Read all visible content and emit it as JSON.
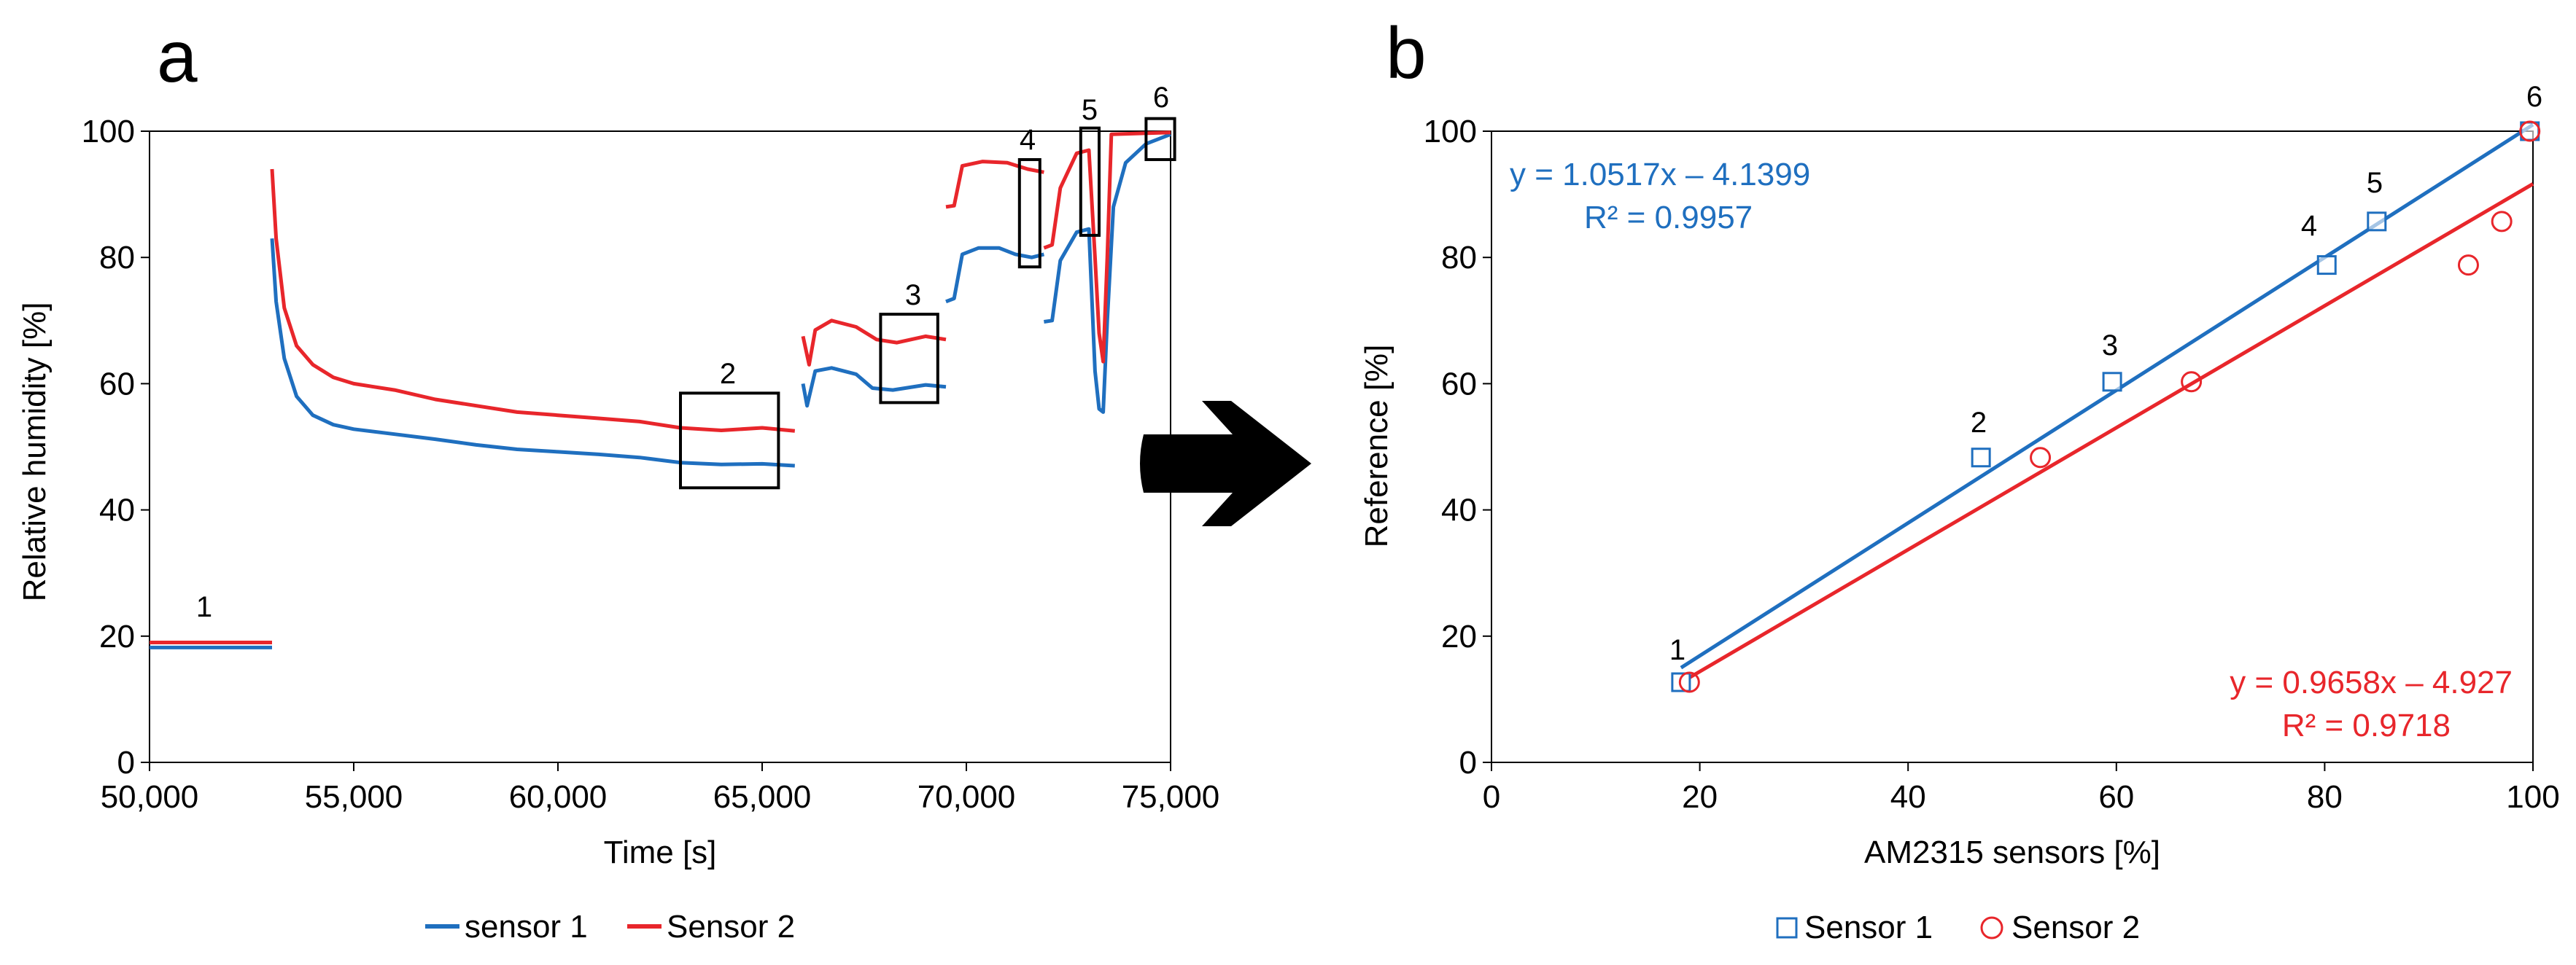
{
  "colors": {
    "series1": "#1f6fbf",
    "series2": "#e8262b",
    "axis": "#000000",
    "box": "#000000"
  },
  "panel_a": {
    "label": "a",
    "xlabel": "Time [s]",
    "ylabel": "Relative humidity [%]",
    "xlim": [
      50000,
      75000
    ],
    "ylim": [
      0,
      100
    ],
    "xticks": [
      "50,000",
      "55,000",
      "60,000",
      "65,000",
      "70,000",
      "75,000"
    ],
    "yticks": [
      "0",
      "20",
      "40",
      "60",
      "80",
      "100"
    ],
    "legend": [
      "sensor 1",
      "Sensor 2"
    ],
    "annotations": [
      "1",
      "2",
      "3",
      "4",
      "5",
      "6"
    ]
  },
  "panel_b": {
    "label": "b",
    "xlabel": "AM2315 sensors [%]",
    "ylabel": "Reference [%]",
    "xlim": [
      0,
      100
    ],
    "ylim": [
      0,
      100
    ],
    "xticks": [
      "0",
      "20",
      "40",
      "60",
      "80",
      "100"
    ],
    "yticks": [
      "0",
      "20",
      "40",
      "60",
      "80",
      "100"
    ],
    "legend": [
      "Sensor 1",
      "Sensor 2"
    ],
    "eq1": "y = 1.0517x – 4.1399",
    "r2_1": "R² = 0.9957",
    "eq2": "y = 0.9658x – 4.927",
    "r2_2": "R² = 0.9718",
    "point_labels": [
      "1",
      "2",
      "3",
      "4",
      "5",
      "6"
    ]
  },
  "chart_data": [
    {
      "type": "line",
      "title": "",
      "xlabel": "Time [s]",
      "ylabel": "Relative humidity [%]",
      "xlim": [
        50000,
        75000
      ],
      "ylim": [
        0,
        100
      ],
      "series": [
        {
          "name": "sensor 1",
          "segments": [
            [
              [
                50000,
                18.2
              ],
              [
                53000,
                18.2
              ]
            ],
            [
              [
                53000,
                83
              ],
              [
                53100,
                73
              ],
              [
                53300,
                64
              ],
              [
                53600,
                58
              ],
              [
                54000,
                55
              ],
              [
                54500,
                53.5
              ],
              [
                55000,
                52.8
              ],
              [
                56000,
                52
              ],
              [
                57000,
                51.2
              ],
              [
                58000,
                50.3
              ],
              [
                59000,
                49.6
              ],
              [
                60000,
                49.2
              ],
              [
                61000,
                48.8
              ],
              [
                62000,
                48.3
              ],
              [
                63000,
                47.5
              ],
              [
                64000,
                47.2
              ],
              [
                65000,
                47.3
              ],
              [
                65800,
                47.0
              ]
            ],
            [
              [
                66000,
                60
              ],
              [
                66100,
                56.5
              ],
              [
                66300,
                62
              ],
              [
                66700,
                62.5
              ],
              [
                67300,
                61.5
              ],
              [
                67700,
                59.3
              ],
              [
                68200,
                59
              ],
              [
                69000,
                59.8
              ],
              [
                69500,
                59.5
              ]
            ],
            [
              [
                69500,
                73
              ],
              [
                69700,
                73.5
              ],
              [
                69900,
                80.5
              ],
              [
                70300,
                81.5
              ],
              [
                70800,
                81.5
              ],
              [
                71200,
                80.5
              ],
              [
                71600,
                80
              ],
              [
                71900,
                80.5
              ]
            ],
            [
              [
                71900,
                69.8
              ],
              [
                72100,
                70
              ],
              [
                72300,
                79.5
              ],
              [
                72700,
                84
              ],
              [
                73000,
                84.5
              ],
              [
                73150,
                62
              ],
              [
                73250,
                56
              ],
              [
                73350,
                55.5
              ],
              [
                73450,
                70
              ],
              [
                73600,
                88
              ],
              [
                73900,
                95
              ],
              [
                74400,
                98
              ],
              [
                75000,
                99.5
              ]
            ]
          ]
        },
        {
          "name": "Sensor 2",
          "segments": [
            [
              [
                50000,
                19.0
              ],
              [
                53000,
                19.0
              ]
            ],
            [
              [
                53000,
                94
              ],
              [
                53100,
                83
              ],
              [
                53300,
                72
              ],
              [
                53600,
                66
              ],
              [
                54000,
                63
              ],
              [
                54500,
                61
              ],
              [
                55000,
                60
              ],
              [
                56000,
                59
              ],
              [
                57000,
                57.5
              ],
              [
                58000,
                56.5
              ],
              [
                59000,
                55.5
              ],
              [
                60000,
                55
              ],
              [
                61000,
                54.5
              ],
              [
                62000,
                54
              ],
              [
                63000,
                53
              ],
              [
                64000,
                52.6
              ],
              [
                65000,
                53
              ],
              [
                65800,
                52.5
              ]
            ],
            [
              [
                66000,
                67.5
              ],
              [
                66150,
                63
              ],
              [
                66300,
                68.5
              ],
              [
                66700,
                70
              ],
              [
                67300,
                69
              ],
              [
                67800,
                67
              ],
              [
                68300,
                66.5
              ],
              [
                69000,
                67.5
              ],
              [
                69500,
                67
              ]
            ],
            [
              [
                69500,
                88
              ],
              [
                69700,
                88.2
              ],
              [
                69900,
                94.5
              ],
              [
                70400,
                95.2
              ],
              [
                71000,
                95
              ],
              [
                71500,
                94
              ],
              [
                71900,
                93.5
              ]
            ],
            [
              [
                71900,
                81.5
              ],
              [
                72100,
                82
              ],
              [
                72300,
                91
              ],
              [
                72700,
                96.5
              ],
              [
                73000,
                97
              ],
              [
                73150,
                80
              ],
              [
                73250,
                68
              ],
              [
                73350,
                63.5
              ],
              [
                73450,
                80
              ],
              [
                73550,
                99.5
              ],
              [
                75000,
                99.8
              ]
            ]
          ]
        }
      ],
      "boxes": [
        {
          "label": "2",
          "x": [
            63000,
            65400
          ],
          "y": [
            43.5,
            58.5
          ]
        },
        {
          "label": "3",
          "x": [
            67900,
            69300
          ],
          "y": [
            57,
            71
          ]
        },
        {
          "label": "4",
          "x": [
            71300,
            71800
          ],
          "y": [
            78.5,
            95.5
          ]
        },
        {
          "label": "5",
          "x": [
            72800,
            73250
          ],
          "y": [
            83.5,
            100.5
          ]
        },
        {
          "label": "6",
          "x": [
            74400,
            75100
          ],
          "y": [
            95.5,
            102
          ]
        }
      ],
      "legend": [
        "sensor 1",
        "Sensor 2"
      ]
    },
    {
      "type": "scatter",
      "title": "",
      "xlabel": "AM2315 sensors [%]",
      "ylabel": "Reference [%]",
      "xlim": [
        0,
        100
      ],
      "ylim": [
        0,
        100
      ],
      "series": [
        {
          "name": "Sensor 1",
          "marker": "square",
          "x": [
            18.2,
            47.0,
            59.6,
            80.2,
            85.0,
            99.7
          ],
          "y": [
            12.7,
            48.3,
            60.3,
            78.8,
            85.7,
            100
          ],
          "fit": {
            "slope": 1.0517,
            "intercept": -4.1399,
            "r2": 0.9957,
            "range": [
              18.2,
              100
            ]
          }
        },
        {
          "name": "Sensor 2",
          "marker": "circle",
          "x": [
            19.0,
            52.7,
            67.2,
            93.8,
            97.0,
            99.7
          ],
          "y": [
            12.7,
            48.3,
            60.3,
            78.8,
            85.7,
            100
          ],
          "fit": {
            "slope": 0.9658,
            "intercept": -4.927,
            "r2": 0.9718,
            "range": [
              19.0,
              100
            ]
          }
        }
      ],
      "legend": [
        "Sensor 1",
        "Sensor 2"
      ]
    }
  ]
}
